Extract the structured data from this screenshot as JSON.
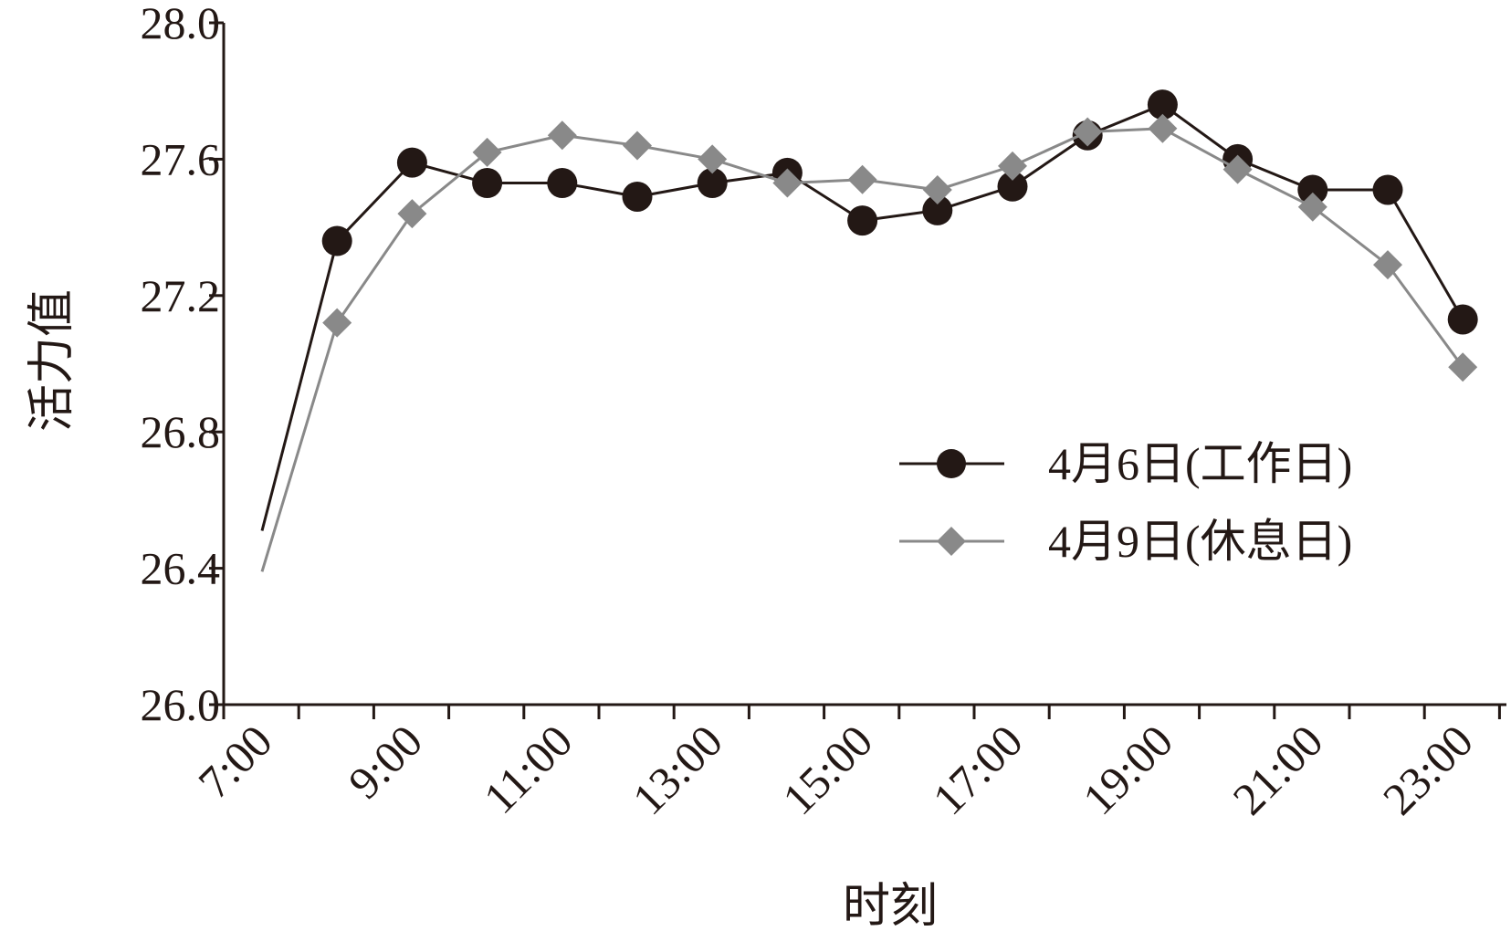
{
  "chart_data": {
    "type": "line",
    "title": "",
    "xlabel": "时刻",
    "ylabel": "活力值",
    "ylim": [
      26.0,
      28.0
    ],
    "yticks": [
      "26.0",
      "26.4",
      "26.8",
      "27.2",
      "27.6",
      "28.0"
    ],
    "xticks": [
      "7:00",
      "9:00",
      "11:00",
      "13:00",
      "15:00",
      "17:00",
      "19:00",
      "21:00",
      "23:00"
    ],
    "grid": false,
    "legend": "right",
    "x": [
      "7:00",
      "8:00",
      "9:00",
      "10:00",
      "11:00",
      "12:00",
      "13:00",
      "14:00",
      "15:00",
      "16:00",
      "17:00",
      "18:00",
      "19:00",
      "20:00",
      "21:00",
      "22:00",
      "23:00"
    ],
    "series": [
      {
        "name": "4月6日(工作日)",
        "color": "#231815",
        "marker": "circle",
        "values": [
          26.51,
          27.36,
          27.59,
          27.53,
          27.53,
          27.49,
          27.53,
          27.56,
          27.42,
          27.45,
          27.52,
          27.67,
          27.76,
          27.6,
          27.51,
          27.51,
          27.13
        ]
      },
      {
        "name": "4月9日(休息日)",
        "color": "#898989",
        "marker": "diamond",
        "values": [
          26.39,
          27.12,
          27.44,
          27.62,
          27.67,
          27.64,
          27.6,
          27.53,
          27.54,
          27.51,
          27.58,
          27.68,
          27.69,
          27.57,
          27.46,
          27.29,
          26.99
        ]
      }
    ]
  }
}
